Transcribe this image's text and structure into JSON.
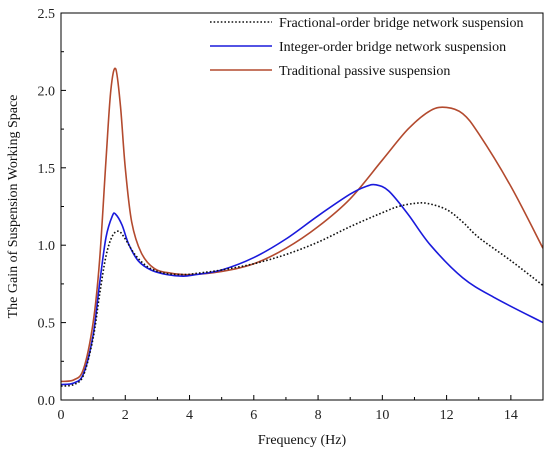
{
  "chart_data": {
    "type": "line",
    "title": "",
    "xlabel": "Frequency (Hz)",
    "ylabel": "The Gain of Suspension Working Space",
    "xlim": [
      0,
      15
    ],
    "ylim": [
      0.0,
      2.5
    ],
    "xticks": [
      0,
      2,
      4,
      6,
      8,
      10,
      12,
      14
    ],
    "yticks": [
      0.0,
      0.5,
      1.0,
      1.5,
      2.0,
      2.5
    ],
    "xtick_labels": [
      "0",
      "2",
      "4",
      "6",
      "8",
      "10",
      "12",
      "14"
    ],
    "ytick_labels": [
      "0.0",
      "0.5",
      "1.0",
      "1.5",
      "2.0",
      "2.5"
    ],
    "grid": false,
    "legend_position": "top-right",
    "series": [
      {
        "name": "Fractional-order bridge network suspension",
        "color": "#111111",
        "style": "dotted",
        "x": [
          0.0,
          0.4,
          0.7,
          1.0,
          1.2,
          1.4,
          1.6,
          1.8,
          2.0,
          2.3,
          2.7,
          3.2,
          3.8,
          4.3,
          5.0,
          6.0,
          7.0,
          8.0,
          9.0,
          10.0,
          10.5,
          11.0,
          11.4,
          12.0,
          12.5,
          13.0,
          14.0,
          15.0
        ],
        "y": [
          0.09,
          0.1,
          0.16,
          0.4,
          0.68,
          0.93,
          1.06,
          1.09,
          1.04,
          0.94,
          0.86,
          0.82,
          0.81,
          0.82,
          0.84,
          0.88,
          0.94,
          1.02,
          1.12,
          1.21,
          1.25,
          1.27,
          1.27,
          1.23,
          1.15,
          1.05,
          0.9,
          0.74
        ]
      },
      {
        "name": "Integer-order bridge network suspension",
        "color": "#1a1adc",
        "style": "solid",
        "x": [
          0.0,
          0.4,
          0.7,
          1.0,
          1.2,
          1.4,
          1.6,
          1.7,
          1.9,
          2.1,
          2.4,
          2.8,
          3.3,
          3.8,
          4.2,
          5.0,
          6.0,
          7.0,
          8.0,
          9.0,
          9.5,
          9.8,
          10.2,
          10.8,
          11.5,
          12.5,
          13.5,
          15.0
        ],
        "y": [
          0.1,
          0.11,
          0.17,
          0.42,
          0.75,
          1.05,
          1.19,
          1.2,
          1.13,
          1.01,
          0.9,
          0.84,
          0.81,
          0.8,
          0.81,
          0.84,
          0.92,
          1.04,
          1.19,
          1.33,
          1.38,
          1.39,
          1.35,
          1.2,
          1.0,
          0.79,
          0.66,
          0.5
        ]
      },
      {
        "name": "Traditional passive suspension",
        "color": "#b34a2e",
        "style": "solid",
        "x": [
          0.0,
          0.4,
          0.7,
          1.0,
          1.2,
          1.4,
          1.55,
          1.7,
          1.85,
          2.0,
          2.2,
          2.5,
          2.9,
          3.4,
          4.0,
          5.0,
          6.0,
          7.0,
          8.0,
          9.0,
          10.0,
          10.8,
          11.5,
          12.0,
          12.5,
          13.0,
          14.0,
          15.0
        ],
        "y": [
          0.12,
          0.13,
          0.2,
          0.5,
          0.9,
          1.55,
          2.0,
          2.14,
          1.9,
          1.5,
          1.15,
          0.95,
          0.85,
          0.82,
          0.81,
          0.83,
          0.88,
          0.98,
          1.12,
          1.3,
          1.55,
          1.75,
          1.87,
          1.89,
          1.85,
          1.72,
          1.38,
          0.98
        ]
      }
    ]
  }
}
